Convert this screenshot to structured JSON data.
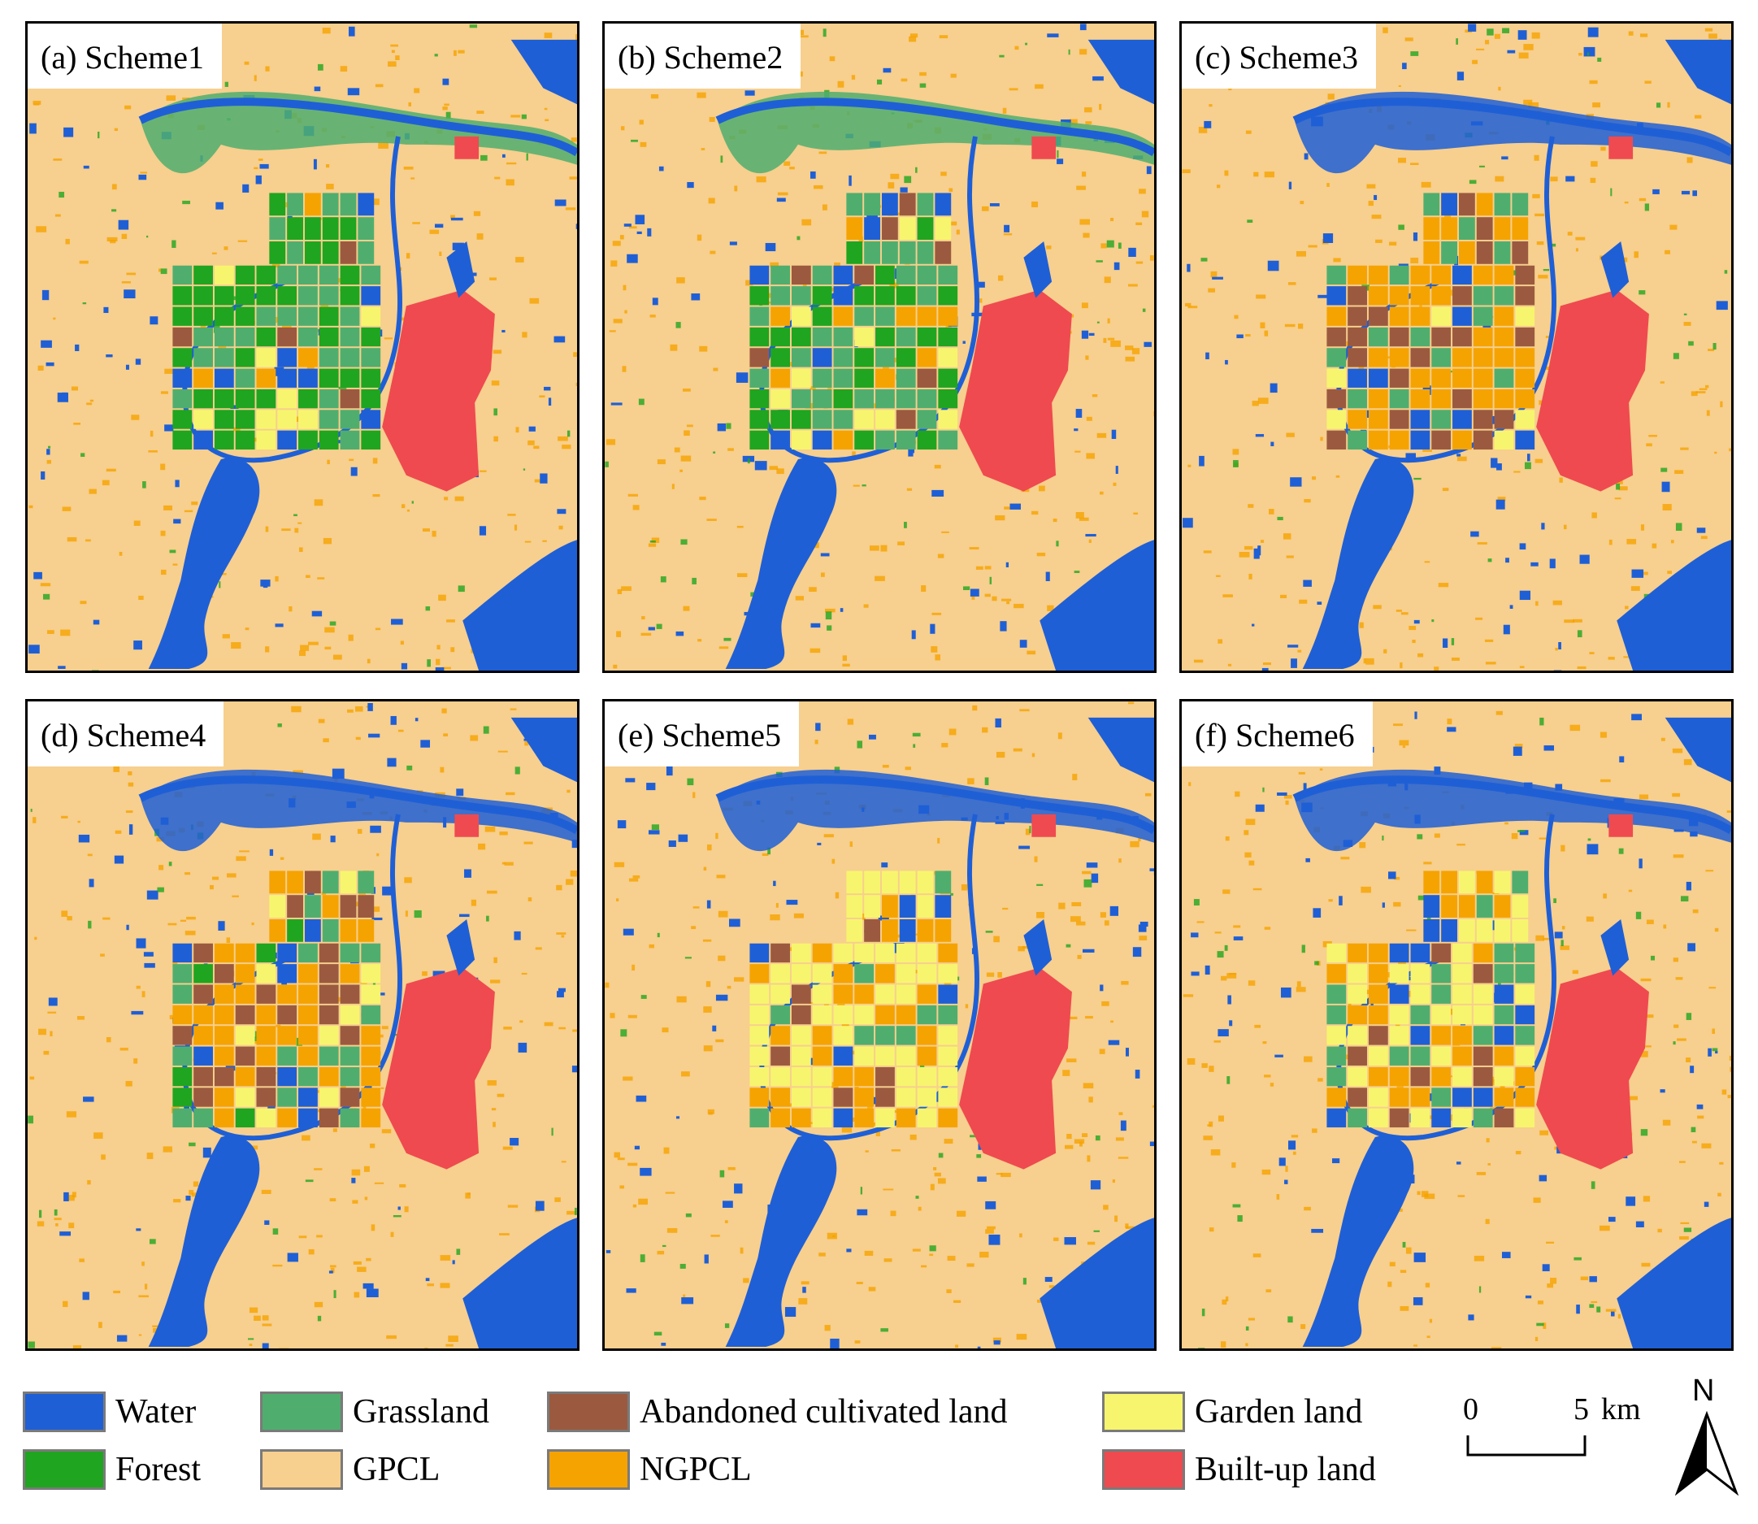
{
  "panels": [
    {
      "label": "(a) Scheme1",
      "variant": "forest-grass"
    },
    {
      "label": "(b) Scheme2",
      "variant": "forest-grass"
    },
    {
      "label": "(c) Scheme3",
      "variant": "ngpcl"
    },
    {
      "label": "(d) Scheme4",
      "variant": "ngpcl-mixed"
    },
    {
      "label": "(e) Scheme5",
      "variant": "garden"
    },
    {
      "label": "(f) Scheme6",
      "variant": "garden-mixed"
    }
  ],
  "legend": [
    {
      "label": "Water",
      "color": "#1f5fd6"
    },
    {
      "label": "Forest",
      "color": "#1fa51f"
    },
    {
      "label": "Grassland",
      "color": "#4fae6e"
    },
    {
      "label": "GPCL",
      "color": "#f7cf8e"
    },
    {
      "label": "Abandoned cultivated land",
      "color": "#9b5a3f"
    },
    {
      "label": "NGPCL",
      "color": "#f5a300"
    },
    {
      "label": "Garden land",
      "color": "#f7f56e"
    },
    {
      "label": "Built-up land",
      "color": "#ef4a4f"
    }
  ],
  "scale": {
    "start": "0",
    "end": "5",
    "unit": "km"
  },
  "north": {
    "label": "N"
  }
}
